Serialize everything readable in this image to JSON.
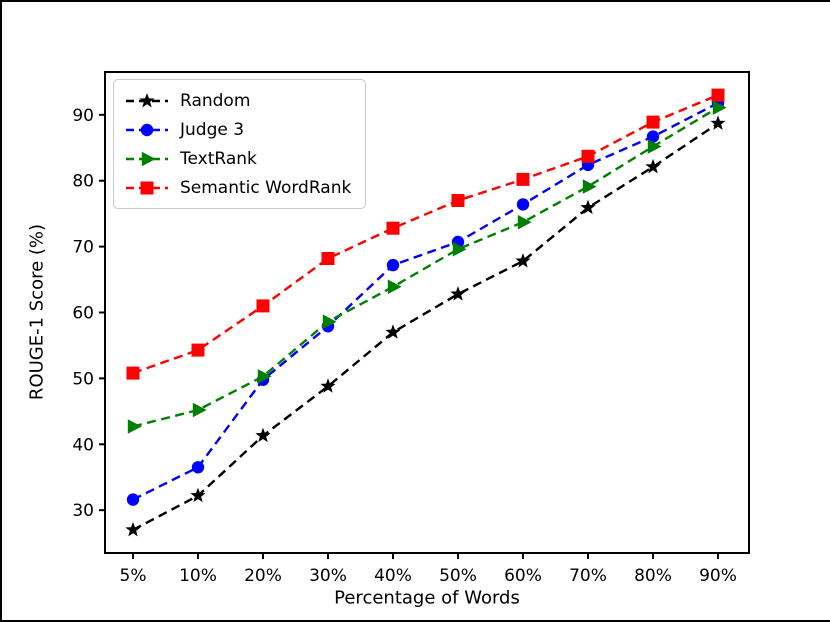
{
  "figure": {
    "background": "#ffffff",
    "frame_color": "#000000"
  },
  "chart_data": {
    "type": "line",
    "title": "",
    "xlabel": "Percentage of Words",
    "ylabel": "ROUGE-1 Score (%)",
    "categories": [
      "5%",
      "10%",
      "20%",
      "30%",
      "40%",
      "50%",
      "60%",
      "70%",
      "80%",
      "90%"
    ],
    "yticks": [
      30,
      40,
      50,
      60,
      70,
      80,
      90
    ],
    "ylim": [
      23.5,
      96.5
    ],
    "grid": false,
    "legend_position": "upper-left",
    "series": [
      {
        "name": "Random",
        "color": "#000000",
        "marker": "star",
        "linestyle": "dashed",
        "values": [
          27.0,
          32.2,
          41.3,
          48.8,
          57.0,
          62.8,
          67.8,
          75.9,
          82.1,
          88.7
        ]
      },
      {
        "name": "Judge 3",
        "color": "#0000ff",
        "marker": "circle",
        "linestyle": "dashed",
        "values": [
          31.6,
          36.5,
          49.8,
          57.9,
          67.2,
          70.7,
          76.4,
          82.4,
          86.7,
          91.8
        ]
      },
      {
        "name": "TextRank",
        "color": "#008000",
        "marker": "triangle-right",
        "linestyle": "dashed",
        "values": [
          42.7,
          45.2,
          50.3,
          58.6,
          63.9,
          69.6,
          73.7,
          79.1,
          85.2,
          91.1
        ]
      },
      {
        "name": "Semantic WordRank",
        "color": "#ff0000",
        "marker": "square",
        "linestyle": "dashed",
        "values": [
          50.8,
          54.3,
          61.0,
          68.2,
          72.8,
          77.0,
          80.2,
          83.7,
          88.9,
          93.0
        ]
      }
    ]
  }
}
